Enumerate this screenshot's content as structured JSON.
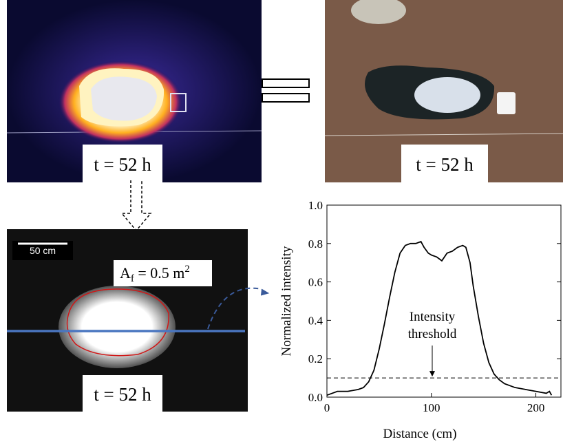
{
  "panels": {
    "thermal_label": "t = 52 h",
    "photo_label": "t = 52 h",
    "processed_label": "t = 52 h",
    "scale_bar": "50 cm",
    "area": {
      "base": "A",
      "sub": "f",
      "rest": " = 0.5 m",
      "sup": "2"
    }
  },
  "chart_data": {
    "type": "line",
    "x_label": "Distance (cm)",
    "y_label": "Normalized intensity",
    "annotation": [
      "Intensity",
      "threshold"
    ],
    "threshold": 0.1,
    "xlim": [
      0,
      224
    ],
    "ylim": [
      0,
      1.0
    ],
    "xticks": [
      0,
      100,
      200
    ],
    "yticks": [
      {
        "value": 0,
        "label": "0.0"
      },
      0.2,
      0.4,
      0.6,
      0.8,
      {
        "value": 1.0,
        "label": "1.0"
      }
    ],
    "series": [
      {
        "color": "#000000",
        "x": [
          0,
          5,
          10,
          20,
          30,
          35,
          40,
          45,
          50,
          55,
          60,
          65,
          70,
          75,
          80,
          85,
          90,
          93,
          97,
          100,
          105,
          110,
          115,
          120,
          125,
          130,
          133,
          137,
          140,
          145,
          150,
          155,
          160,
          165,
          170,
          180,
          190,
          200,
          210,
          213,
          215
        ],
        "values": [
          0.01,
          0.02,
          0.03,
          0.03,
          0.04,
          0.05,
          0.08,
          0.14,
          0.25,
          0.38,
          0.52,
          0.65,
          0.75,
          0.79,
          0.8,
          0.8,
          0.81,
          0.78,
          0.75,
          0.74,
          0.73,
          0.71,
          0.75,
          0.76,
          0.78,
          0.79,
          0.78,
          0.7,
          0.58,
          0.42,
          0.28,
          0.18,
          0.12,
          0.09,
          0.07,
          0.05,
          0.04,
          0.03,
          0.02,
          0.03,
          0.01
        ]
      }
    ]
  }
}
